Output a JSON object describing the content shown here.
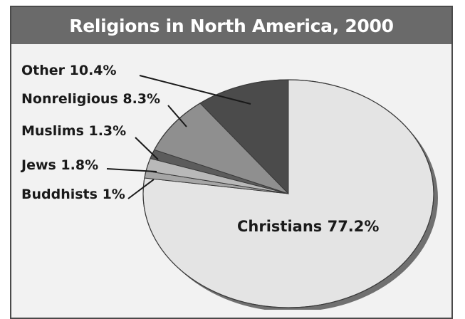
{
  "chart_data": {
    "type": "pie",
    "title": "Religions in North America, 2000",
    "slices": [
      {
        "label": "Christians",
        "value": 77.2,
        "label_text": "Christians 77.2%",
        "color": "#e4e4e4"
      },
      {
        "label": "Buddhists",
        "value": 1.0,
        "label_text": "Buddhists 1%",
        "color": "#a6a6a6"
      },
      {
        "label": "Jews",
        "value": 1.8,
        "label_text": "Jews 1.8%",
        "color": "#b9b9b9"
      },
      {
        "label": "Muslims",
        "value": 1.3,
        "label_text": "Muslims 1.3%",
        "color": "#5c5c5c"
      },
      {
        "label": "Nonreligious",
        "value": 8.3,
        "label_text": "Nonreligious 8.3%",
        "color": "#8f8f8f"
      },
      {
        "label": "Other",
        "value": 10.4,
        "label_text": "Other 10.4%",
        "color": "#4b4b4b"
      }
    ],
    "colors": {
      "title_bar": "#6a6a6a",
      "title_text": "#ffffff",
      "background": "#f2f2f2",
      "border": "#4a4a4a"
    }
  }
}
